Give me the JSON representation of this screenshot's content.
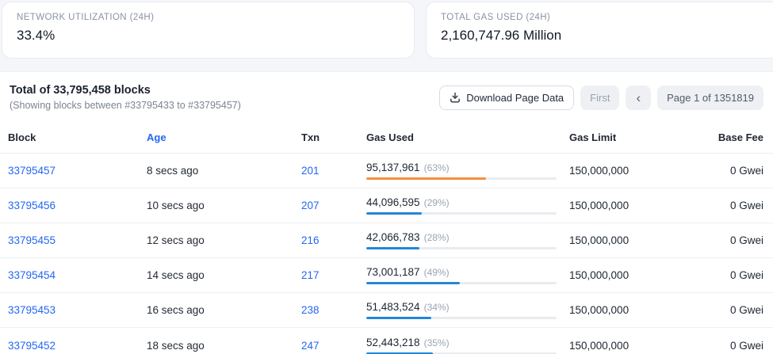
{
  "stats": [
    {
      "label": "NETWORK UTILIZATION (24H)",
      "value": "33.4%"
    },
    {
      "label": "TOTAL GAS USED (24H)",
      "value": "2,160,747.96 Million"
    }
  ],
  "panel": {
    "total_text": "Total of 33,795,458 blocks",
    "showing_text": "(Showing blocks between #33795433 to #33795457)",
    "download_label": "Download Page Data",
    "pagination": {
      "first_label": "First",
      "prev_label": "‹",
      "page_label": "Page 1 of 1351819"
    }
  },
  "table": {
    "columns": [
      "Block",
      "Age",
      "Txn",
      "Gas Used",
      "Gas Limit",
      "Base Fee"
    ],
    "rows": [
      {
        "block": "33795457",
        "age": "8 secs ago",
        "txn": "201",
        "gas_used": "95,137,961",
        "gas_pct": "(63%)",
        "pct": 63,
        "bar_color": "#f2913d",
        "gas_limit": "150,000,000",
        "base_fee": "0 Gwei"
      },
      {
        "block": "33795456",
        "age": "10 secs ago",
        "txn": "207",
        "gas_used": "44,096,595",
        "gas_pct": "(29%)",
        "pct": 29,
        "bar_color": "#2287d8",
        "gas_limit": "150,000,000",
        "base_fee": "0 Gwei"
      },
      {
        "block": "33795455",
        "age": "12 secs ago",
        "txn": "216",
        "gas_used": "42,066,783",
        "gas_pct": "(28%)",
        "pct": 28,
        "bar_color": "#2287d8",
        "gas_limit": "150,000,000",
        "base_fee": "0 Gwei"
      },
      {
        "block": "33795454",
        "age": "14 secs ago",
        "txn": "217",
        "gas_used": "73,001,187",
        "gas_pct": "(49%)",
        "pct": 49,
        "bar_color": "#2287d8",
        "gas_limit": "150,000,000",
        "base_fee": "0 Gwei"
      },
      {
        "block": "33795453",
        "age": "16 secs ago",
        "txn": "238",
        "gas_used": "51,483,524",
        "gas_pct": "(34%)",
        "pct": 34,
        "bar_color": "#2287d8",
        "gas_limit": "150,000,000",
        "base_fee": "0 Gwei"
      },
      {
        "block": "33795452",
        "age": "18 secs ago",
        "txn": "247",
        "gas_used": "52,443,218",
        "gas_pct": "(35%)",
        "pct": 35,
        "bar_color": "#2287d8",
        "gas_limit": "150,000,000",
        "base_fee": "0 Gwei"
      }
    ]
  },
  "colors": {
    "link_blue": "#2467f2",
    "bar_blue": "#2287d8",
    "bar_orange": "#f2913d",
    "track_gray": "#e9ecef"
  }
}
